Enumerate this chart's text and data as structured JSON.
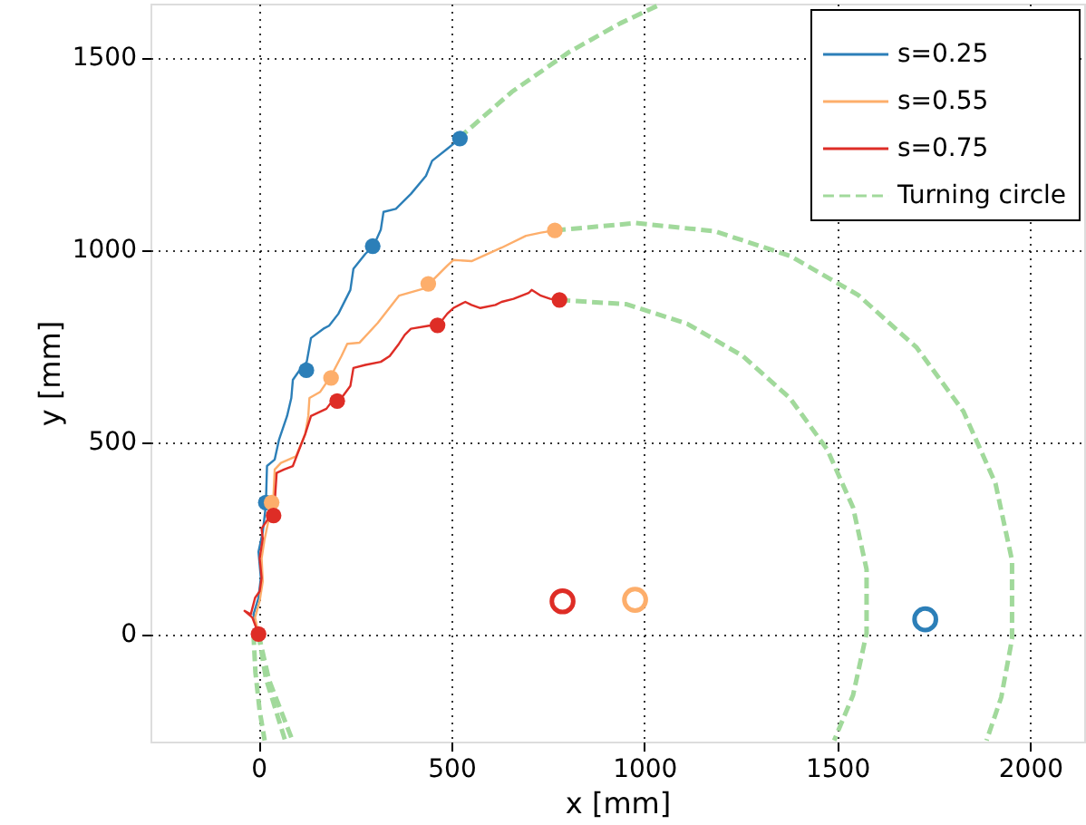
{
  "chart_data": {
    "type": "line",
    "xlabel": "x [mm]",
    "ylabel": "y [mm]",
    "xlim": [
      -280,
      2140
    ],
    "ylim": [
      -280,
      1640
    ],
    "xticks": [
      0,
      500,
      1000,
      1500,
      2000
    ],
    "yticks": [
      0,
      500,
      1000,
      1500
    ],
    "grid": true,
    "legend": "top right",
    "line_style": "solid",
    "series": [
      {
        "name": "s=0.25",
        "color": "#2c7fb8",
        "x": [
          0,
          -13,
          0,
          6,
          0,
          11,
          19,
          22,
          42,
          53,
          74,
          85,
          89,
          105,
          125,
          136,
          168,
          183,
          207,
          238,
          246,
          277,
          298,
          317,
          324,
          356,
          395,
          434,
          450,
          489,
          522
        ],
        "values": [
          0,
          51,
          94,
          146,
          214,
          265,
          334,
          437,
          454,
          505,
          567,
          614,
          661,
          684,
          708,
          770,
          794,
          802,
          833,
          895,
          950,
          989,
          1009,
          1052,
          1098,
          1106,
          1145,
          1192,
          1231,
          1262,
          1289
        ]
      },
      {
        "name": "s=0.55",
        "color": "#fdae6b",
        "x": [
          0,
          -9,
          3,
          11,
          8,
          16,
          27,
          38,
          42,
          58,
          97,
          121,
          129,
          132,
          160,
          183,
          191,
          215,
          230,
          262,
          309,
          364,
          426,
          442,
          489,
          505,
          552,
          630,
          693,
          732,
          768
        ],
        "values": [
          0,
          43,
          86,
          137,
          197,
          248,
          300,
          342,
          428,
          445,
          462,
          520,
          567,
          614,
          630,
          664,
          677,
          723,
          755,
          758,
          809,
          880,
          898,
          911,
          958,
          973,
          970,
          1005,
          1036,
          1044,
          1050
        ]
      },
      {
        "name": "s=0.75",
        "color": "#de2d26",
        "x": [
          0,
          -16,
          -36,
          -20,
          -9,
          3,
          8,
          3,
          11,
          8,
          27,
          42,
          47,
          66,
          89,
          105,
          121,
          136,
          176,
          191,
          215,
          238,
          246,
          277,
          317,
          340,
          364,
          379,
          395,
          442,
          465,
          489,
          505,
          536,
          552,
          575,
          614,
          630,
          661,
          700,
          708,
          732,
          756,
          780
        ],
        "values": [
          0,
          43,
          60,
          51,
          94,
          111,
          146,
          197,
          248,
          274,
          303,
          342,
          419,
          428,
          437,
          479,
          520,
          567,
          586,
          606,
          614,
          645,
          692,
          700,
          708,
          723,
          755,
          778,
          794,
          802,
          802,
          833,
          848,
          864,
          856,
          848,
          856,
          864,
          872,
          887,
          895,
          880,
          872,
          869
        ]
      },
      {
        "name": "Turning circle",
        "color": "#a1d99b",
        "type": "line",
        "line_style": "dashed",
        "x": [
          519,
          656,
          805,
          938,
          1037
        ],
        "values": [
          1290,
          1410,
          1514,
          1589,
          1636
        ]
      },
      {
        "color": "#a1d99b",
        "type": "line",
        "line_style": "dashed",
        "x": [
          -13,
          -8,
          3,
          16
        ],
        "values": [
          0,
          -100,
          -200,
          -277
        ]
      },
      {
        "color": "#a1d99b",
        "type": "line",
        "line_style": "dashed",
        "x": [
          768,
          978,
          1182,
          1377,
          1554,
          1706,
          1827,
          1910,
          1953,
          1953,
          1925,
          1887
        ],
        "values": [
          1050,
          1069,
          1048,
          984,
          882,
          745,
          579,
          392,
          191,
          -13,
          -165,
          -277
        ]
      },
      {
        "color": "#a1d99b",
        "type": "line",
        "line_style": "dashed",
        "x": [
          0,
          19,
          69
        ],
        "values": [
          0,
          -115,
          -277
        ]
      },
      {
        "color": "#a1d99b",
        "type": "line",
        "line_style": "dashed",
        "x": [
          780,
          954,
          1111,
          1254,
          1377,
          1474,
          1541,
          1576,
          1576,
          1541,
          1492
        ],
        "values": [
          869,
          858,
          807,
          724,
          614,
          480,
          329,
          168,
          2,
          -159,
          -277
        ]
      },
      {
        "color": "#a1d99b",
        "type": "line",
        "line_style": "dashed",
        "x": [
          0,
          27,
          88
        ],
        "values": [
          0,
          -119,
          -277
        ]
      },
      {
        "color": "#2c7fb8",
        "type": "scatter",
        "marker": "circle",
        "x": [
          19,
          124,
          296,
          522
        ],
        "values": [
          342,
          686,
          1009,
          1289
        ]
      },
      {
        "color": "#fdae6b",
        "type": "scatter",
        "marker": "circle",
        "x": [
          34,
          188,
          440,
          768
        ],
        "values": [
          342,
          666,
          911,
          1050
        ]
      },
      {
        "color": "#de2d26",
        "type": "scatter",
        "marker": "circle",
        "x": [
          0,
          39,
          204,
          464,
          780
        ],
        "values": [
          0,
          308,
          606,
          803,
          869
        ]
      },
      {
        "color": "#de2d26",
        "type": "scatter",
        "x": [
          788
        ],
        "values": [
          85
        ]
      },
      {
        "color": "#fdae6b",
        "type": "scatter",
        "x": [
          976
        ],
        "values": [
          89
        ]
      },
      {
        "color": "#2c7fb8",
        "type": "scatter",
        "x": [
          1728
        ],
        "values": [
          38
        ]
      }
    ]
  }
}
